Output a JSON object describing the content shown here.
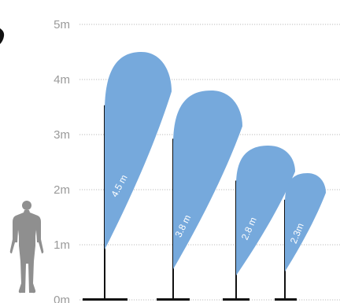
{
  "scale": {
    "unit": "m",
    "ticks": [
      {
        "value": 0,
        "label": "0m"
      },
      {
        "value": 1,
        "label": "1m"
      },
      {
        "value": 2,
        "label": "2m"
      },
      {
        "value": 3,
        "label": "3m"
      },
      {
        "value": 4,
        "label": "4m"
      },
      {
        "value": 5,
        "label": "5m"
      }
    ]
  },
  "flags": [
    {
      "height_m": 4.5,
      "label": "4.5 m"
    },
    {
      "height_m": 3.8,
      "label": "3.8 m"
    },
    {
      "height_m": 2.8,
      "label": "2.8 m"
    },
    {
      "height_m": 2.3,
      "label": "2.3m"
    }
  ],
  "colors": {
    "flag_fill": "#76a9dc",
    "pole": "#111111",
    "gridline": "#bdbdbd",
    "tick_text": "#9a9a9a",
    "person": "#8f8f8f",
    "flag_text": "#ffffff"
  },
  "icons": {
    "person": "person-silhouette-icon"
  }
}
